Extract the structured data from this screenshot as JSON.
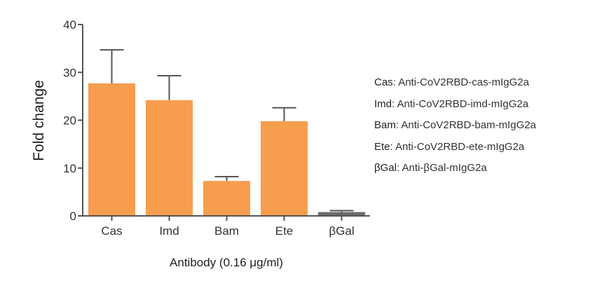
{
  "chart_data": {
    "type": "bar",
    "title": "",
    "xlabel": "Antibody (0.16 μg/ml)",
    "ylabel": "Fold change",
    "ylim": [
      0,
      40
    ],
    "yticks": [
      0,
      10,
      20,
      30,
      40
    ],
    "categories": [
      "Cas",
      "Imd",
      "Bam",
      "Ete",
      "βGal"
    ],
    "values": [
      27.7,
      24.2,
      7.3,
      19.8,
      0.8
    ],
    "error_upper": [
      34.7,
      29.3,
      8.2,
      22.6,
      1.1
    ],
    "bar_colors": [
      "#f79d4e",
      "#f79d4e",
      "#f79d4e",
      "#f79d4e",
      "#6b6b6b"
    ],
    "grid": false,
    "legend_position": "right"
  },
  "legend": {
    "items": [
      {
        "key": "Cas",
        "desc": "Anti-CoV2RBD-cas-mIgG2a"
      },
      {
        "key": "Imd",
        "desc": "Anti-CoV2RBD-imd-mIgG2a"
      },
      {
        "key": "Bam",
        "desc": "Anti-CoV2RBD-bam-mIgG2a"
      },
      {
        "key": "Ete",
        "desc": "Anti-CoV2RBD-ete-mIgG2a"
      },
      {
        "key": "βGal",
        "desc": "Anti-βGal-mIgG2a"
      }
    ]
  },
  "colors": {
    "axis": "#555555",
    "bar": "#f79d4e",
    "control_bar": "#6b6b6b"
  }
}
